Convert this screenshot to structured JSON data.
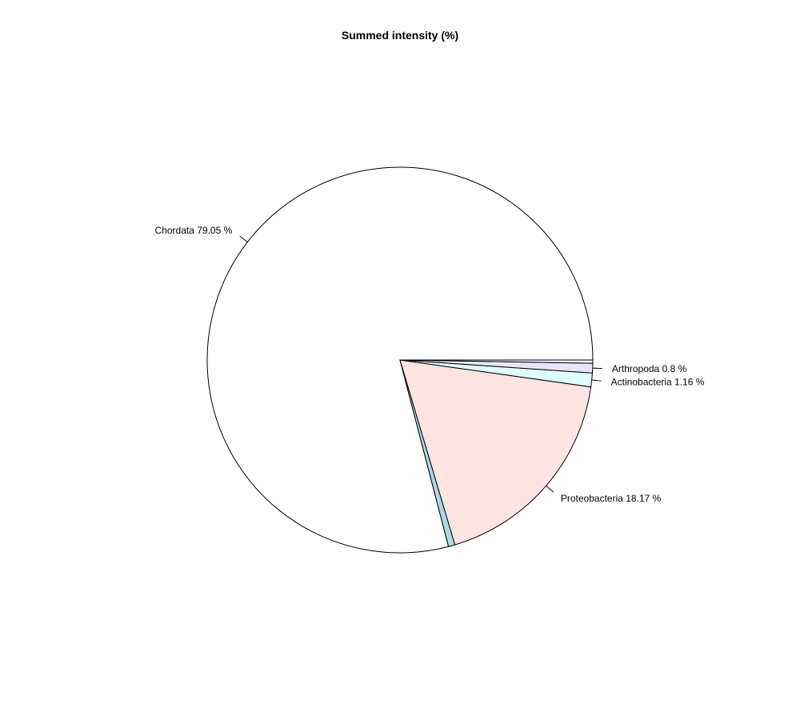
{
  "chart_data": {
    "type": "pie",
    "title": "Summed intensity (%)",
    "start_angle_deg": 0,
    "direction": "counterclockwise",
    "slices": [
      {
        "name": "Chordata",
        "value": 79.05,
        "label": "Chordata 79.05 %",
        "color": "#ffffff"
      },
      {
        "name": "",
        "value": 0.55,
        "label": "",
        "color": "#add8e6"
      },
      {
        "name": "Proteobacteria",
        "value": 18.17,
        "label": "Proteobacteria 18.17 %",
        "color": "#ffe4e1"
      },
      {
        "name": "Actinobacteria",
        "value": 1.16,
        "label": "Actinobacteria 1.16 %",
        "color": "#e0ffff"
      },
      {
        "name": "Arthropoda",
        "value": 0.8,
        "label": "Arthropoda 0.8 %",
        "color": "#e6e6fa"
      },
      {
        "name": "",
        "value": 0.27,
        "label": "",
        "color": "#f0f8ff"
      }
    ]
  }
}
